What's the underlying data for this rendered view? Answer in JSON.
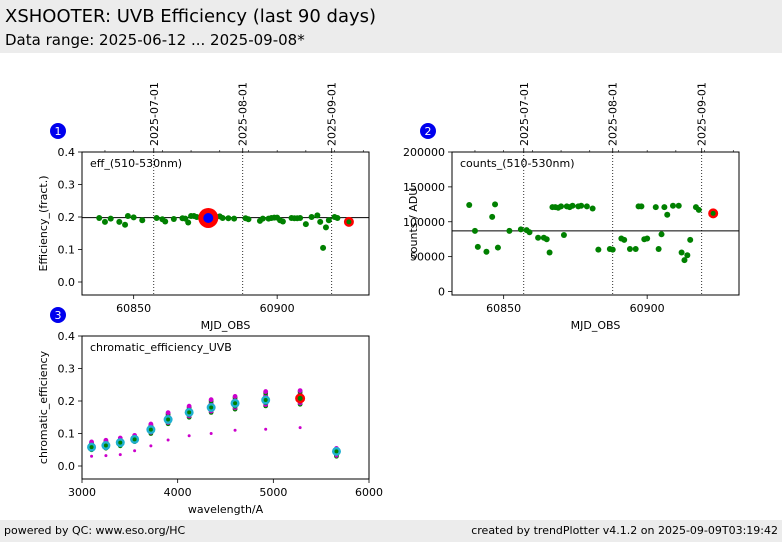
{
  "header": {
    "title": "XSHOOTER: UVB Efficiency (last 90 days)",
    "subtitle": "Data range: 2025-06-12 ... 2025-09-08*"
  },
  "footer": {
    "left": "powered by QC: www.eso.org/HC",
    "right": "created by trendPlotter v4.1.2 on 2025-09-09T03:19:42"
  },
  "colors": {
    "trend": "#008000",
    "last": "#ff0000",
    "highlight": "#0000ff",
    "ref": "#cc00cc",
    "cyan": "#20b0d0"
  },
  "chart_data": [
    {
      "panel": "1",
      "type": "scatter",
      "label": "eff_(510-530nm)",
      "xlabel": "MJD_OBS",
      "ylabel": "Efficiency_(fract.)",
      "xlim": [
        60832,
        60932
      ],
      "ylim": [
        -0.04,
        0.4
      ],
      "xticks": [
        60850,
        60900
      ],
      "yticks": [
        0.0,
        0.1,
        0.2,
        0.3,
        0.4
      ],
      "ytick_labels": [
        "0.0",
        "0.1",
        "0.2",
        "0.3",
        "0.4"
      ],
      "reference_line": 0.198,
      "date_markers": [
        {
          "label": "2025-07-01",
          "mjd": 60857
        },
        {
          "label": "2025-08-01",
          "mjd": 60888
        },
        {
          "label": "2025-09-01",
          "mjd": 60919
        }
      ],
      "points": [
        [
          60838,
          0.197
        ],
        [
          60840,
          0.185
        ],
        [
          60842,
          0.195
        ],
        [
          60845,
          0.185
        ],
        [
          60847,
          0.176
        ],
        [
          60848,
          0.203
        ],
        [
          60850,
          0.199
        ],
        [
          60853,
          0.19
        ],
        [
          60858,
          0.197
        ],
        [
          60860,
          0.193
        ],
        [
          60861,
          0.186
        ],
        [
          60864,
          0.194
        ],
        [
          60867,
          0.196
        ],
        [
          60868,
          0.195
        ],
        [
          60869,
          0.183
        ],
        [
          60870,
          0.203
        ],
        [
          60871,
          0.203
        ],
        [
          60872,
          0.2
        ],
        [
          60874,
          0.2
        ],
        [
          60876,
          0.2
        ],
        [
          60878,
          0.2
        ],
        [
          60880,
          0.202
        ],
        [
          60881,
          0.197
        ],
        [
          60883,
          0.196
        ],
        [
          60885,
          0.195
        ],
        [
          60889,
          0.196
        ],
        [
          60890,
          0.193
        ],
        [
          60894,
          0.188
        ],
        [
          60895,
          0.195
        ],
        [
          60897,
          0.195
        ],
        [
          60898,
          0.197
        ],
        [
          60899,
          0.198
        ],
        [
          60900,
          0.198
        ],
        [
          60901,
          0.19
        ],
        [
          60902,
          0.186
        ],
        [
          60905,
          0.197
        ],
        [
          60906,
          0.196
        ],
        [
          60907,
          0.196
        ],
        [
          60908,
          0.197
        ],
        [
          60910,
          0.178
        ],
        [
          60912,
          0.2
        ],
        [
          60914,
          0.205
        ],
        [
          60915,
          0.185
        ],
        [
          60916,
          0.105
        ],
        [
          60917,
          0.168
        ],
        [
          60918,
          0.19
        ],
        [
          60920,
          0.2
        ],
        [
          60921,
          0.197
        ]
      ],
      "highlight_point": [
        60876,
        0.197
      ],
      "last_point": [
        60925,
        0.185
      ]
    },
    {
      "panel": "2",
      "type": "scatter",
      "label": "counts_(510-530nm)",
      "xlabel": "MJD_OBS",
      "ylabel": "counts / ADU",
      "xlim": [
        60832,
        60932
      ],
      "ylim": [
        -5000,
        200000
      ],
      "xticks": [
        60850,
        60900
      ],
      "yticks": [
        0,
        50000,
        100000,
        150000,
        200000
      ],
      "ytick_labels": [
        "0",
        "50000",
        "100000",
        "150000",
        "200000"
      ],
      "reference_line": 87000,
      "date_markers": [
        {
          "label": "2025-07-01",
          "mjd": 60857
        },
        {
          "label": "2025-08-01",
          "mjd": 60888
        },
        {
          "label": "2025-09-01",
          "mjd": 60919
        }
      ],
      "points": [
        [
          60838,
          124000
        ],
        [
          60840,
          87000
        ],
        [
          60841,
          64000
        ],
        [
          60844,
          57000
        ],
        [
          60846,
          107000
        ],
        [
          60847,
          125000
        ],
        [
          60848,
          63000
        ],
        [
          60852,
          87000
        ],
        [
          60856,
          89000
        ],
        [
          60858,
          88000
        ],
        [
          60859,
          85000
        ],
        [
          60862,
          77000
        ],
        [
          60864,
          77000
        ],
        [
          60865,
          75000
        ],
        [
          60866,
          56000
        ],
        [
          60867,
          121000
        ],
        [
          60868,
          121000
        ],
        [
          60869,
          120000
        ],
        [
          60870,
          122000
        ],
        [
          60871,
          81000
        ],
        [
          60872,
          122000
        ],
        [
          60873,
          121000
        ],
        [
          60874,
          123000
        ],
        [
          60876,
          122000
        ],
        [
          60877,
          123000
        ],
        [
          60879,
          122000
        ],
        [
          60881,
          119000
        ],
        [
          60883,
          60000
        ],
        [
          60887,
          61000
        ],
        [
          60888,
          60000
        ],
        [
          60891,
          76000
        ],
        [
          60892,
          74000
        ],
        [
          60894,
          61000
        ],
        [
          60896,
          61000
        ],
        [
          60897,
          122000
        ],
        [
          60898,
          122000
        ],
        [
          60899,
          75000
        ],
        [
          60900,
          76000
        ],
        [
          60903,
          121000
        ],
        [
          60904,
          61000
        ],
        [
          60905,
          82000
        ],
        [
          60906,
          121000
        ],
        [
          60907,
          110000
        ],
        [
          60909,
          123000
        ],
        [
          60911,
          123000
        ],
        [
          60912,
          56000
        ],
        [
          60913,
          45000
        ],
        [
          60914,
          52000
        ],
        [
          60915,
          74000
        ],
        [
          60917,
          121000
        ],
        [
          60918,
          117000
        ]
      ],
      "last_point": [
        60923,
        112000
      ]
    },
    {
      "panel": "3",
      "type": "scatter",
      "label": "chromatic_efficiency_UVB",
      "xlabel": "wavelength/A",
      "ylabel": "chromatic_efficiency",
      "xlim": [
        3000,
        6000
      ],
      "ylim": [
        -0.04,
        0.4
      ],
      "xticks": [
        3000,
        4000,
        5000,
        6000
      ],
      "yticks": [
        0.0,
        0.1,
        0.2,
        0.3,
        0.4
      ],
      "ytick_labels": [
        "0.0",
        "0.1",
        "0.2",
        "0.3",
        "0.4"
      ],
      "groups": [
        {
          "x": 3100,
          "lo": 0.05,
          "hi": 0.07,
          "ref": 0.03,
          "cyan": 0.058
        },
        {
          "x": 3250,
          "lo": 0.055,
          "hi": 0.075,
          "ref": 0.032,
          "cyan": 0.063
        },
        {
          "x": 3400,
          "lo": 0.062,
          "hi": 0.082,
          "ref": 0.035,
          "cyan": 0.072
        },
        {
          "x": 3550,
          "lo": 0.075,
          "hi": 0.09,
          "ref": 0.047,
          "cyan": 0.082
        },
        {
          "x": 3720,
          "lo": 0.1,
          "hi": 0.125,
          "ref": 0.062,
          "cyan": 0.112
        },
        {
          "x": 3900,
          "lo": 0.13,
          "hi": 0.16,
          "ref": 0.08,
          "cyan": 0.143
        },
        {
          "x": 4120,
          "lo": 0.15,
          "hi": 0.18,
          "ref": 0.093,
          "cyan": 0.165
        },
        {
          "x": 4350,
          "lo": 0.165,
          "hi": 0.2,
          "ref": 0.1,
          "cyan": 0.18
        },
        {
          "x": 4600,
          "lo": 0.175,
          "hi": 0.21,
          "ref": 0.11,
          "cyan": 0.193
        },
        {
          "x": 4920,
          "lo": 0.185,
          "hi": 0.225,
          "ref": 0.113,
          "cyan": 0.203
        },
        {
          "x": 5280,
          "lo": 0.19,
          "hi": 0.228,
          "ref": 0.118,
          "cyan": null
        },
        {
          "x": 5660,
          "lo": 0.03,
          "hi": 0.05,
          "ref": 0.03,
          "cyan": 0.045
        }
      ],
      "last_point": [
        5280,
        0.208
      ]
    }
  ]
}
